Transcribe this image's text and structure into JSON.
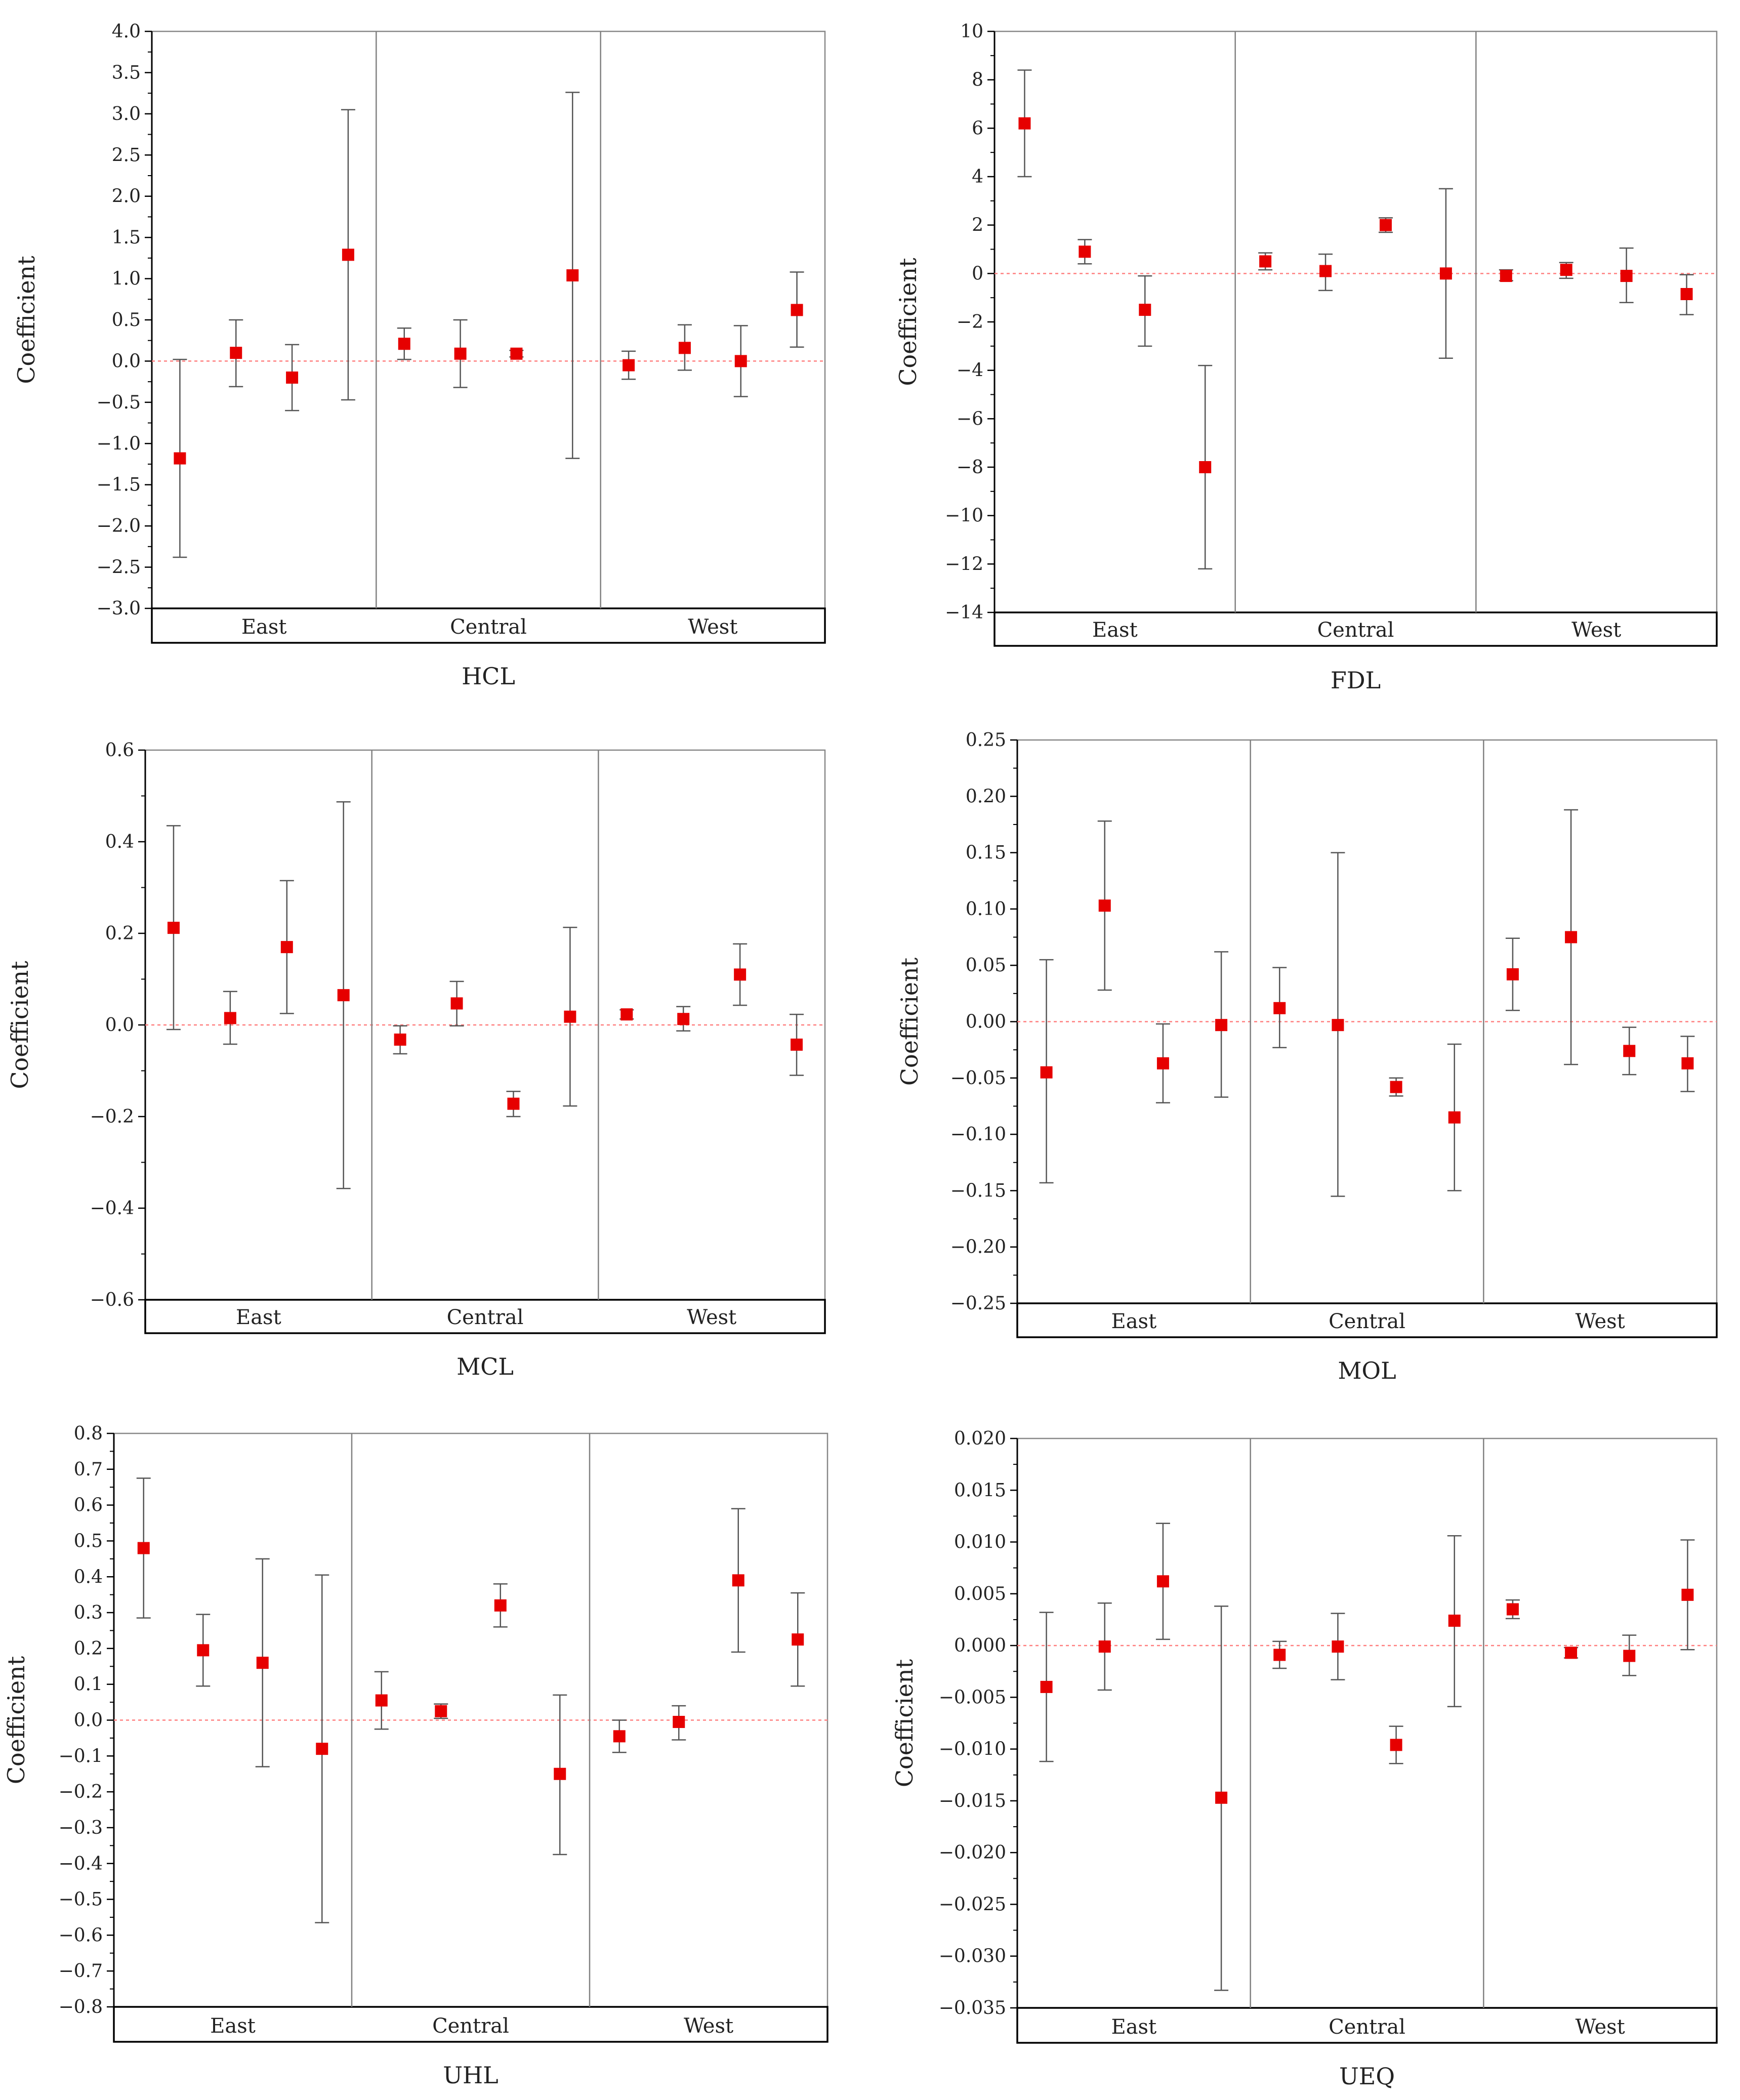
{
  "figure": {
    "colors": {
      "marker": "#e60000",
      "axis": "#000000",
      "divider": "#808080",
      "errorbar": "#555555",
      "zero_line": "#ff8080"
    },
    "y_axis_label": "Coefficient",
    "region_labels": [
      "East",
      "Central",
      "West"
    ]
  },
  "chart_data": [
    {
      "type": "scatter",
      "title": "HCL",
      "ylabel": "Coefficient",
      "ylim": [
        -3.0,
        4.0
      ],
      "yticks": [
        4.0,
        3.5,
        3.0,
        2.5,
        2.0,
        1.5,
        1.0,
        0.5,
        0.0,
        -0.5,
        -1.0,
        -1.5,
        -2.0,
        -2.5,
        -3.0
      ],
      "tick_labels": [
        "4.0",
        "3.5",
        "3.0",
        "2.5",
        "2.0",
        "1.5",
        "1.0",
        "0.5",
        "0.0",
        "-0.5",
        "-1.0",
        "-1.5",
        "-2.0",
        "-2.5",
        "-3.0"
      ],
      "groups": [
        "East",
        "Central",
        "West"
      ],
      "group_sizes": [
        4,
        4,
        4
      ],
      "values": [
        -1.18,
        0.1,
        -0.2,
        1.29,
        0.21,
        0.09,
        0.09,
        1.04,
        -0.05,
        0.16,
        0.0,
        0.62
      ],
      "lower": [
        -2.38,
        -0.31,
        -0.6,
        -0.47,
        0.02,
        -0.32,
        0.05,
        -1.18,
        -0.22,
        -0.11,
        -0.43,
        0.17
      ],
      "upper": [
        0.02,
        0.5,
        0.2,
        3.05,
        0.4,
        0.5,
        0.13,
        3.26,
        0.12,
        0.44,
        0.43,
        1.08
      ]
    },
    {
      "type": "scatter",
      "title": "FDL",
      "ylabel": "Coefficient",
      "ylim": [
        -14,
        10
      ],
      "yticks": [
        10,
        8,
        6,
        4,
        2,
        0,
        -2,
        -4,
        -6,
        -8,
        -10,
        -12,
        -14
      ],
      "tick_labels": [
        "10",
        "8",
        "6",
        "4",
        "2",
        "0",
        "-2",
        "-4",
        "-6",
        "-8",
        "-10",
        "-12",
        "-14"
      ],
      "groups": [
        "East",
        "Central",
        "West"
      ],
      "group_sizes": [
        4,
        4,
        4
      ],
      "values": [
        6.2,
        0.9,
        -1.5,
        -8.0,
        0.5,
        0.1,
        2.0,
        0.0,
        -0.1,
        0.15,
        -0.1,
        -0.85
      ],
      "lower": [
        4.0,
        0.4,
        -3.0,
        -12.2,
        0.15,
        -0.7,
        1.7,
        -3.5,
        -0.3,
        -0.2,
        -1.2,
        -1.7
      ],
      "upper": [
        8.4,
        1.4,
        -0.1,
        -3.8,
        0.85,
        0.8,
        2.3,
        3.5,
        0.15,
        0.45,
        1.05,
        -0.05
      ]
    },
    {
      "type": "scatter",
      "title": "MCL",
      "ylabel": "Coefficient",
      "ylim": [
        -0.6,
        0.6
      ],
      "yticks": [
        0.6,
        0.4,
        0.2,
        0.0,
        -0.2,
        -0.4,
        -0.6
      ],
      "tick_labels": [
        "0.6",
        "0.4",
        "0.2",
        "0.0",
        "-0.2",
        "-0.4",
        "-0.6"
      ],
      "groups": [
        "East",
        "Central",
        "West"
      ],
      "group_sizes": [
        4,
        4,
        4
      ],
      "values": [
        0.212,
        0.015,
        0.17,
        0.065,
        -0.032,
        0.047,
        -0.172,
        0.018,
        0.023,
        0.013,
        0.11,
        -0.043
      ],
      "lower": [
        -0.01,
        -0.042,
        0.025,
        -0.357,
        -0.063,
        -0.002,
        -0.2,
        -0.177,
        0.013,
        -0.013,
        0.043,
        -0.11
      ],
      "upper": [
        0.435,
        0.073,
        0.315,
        0.487,
        -0.002,
        0.095,
        -0.145,
        0.213,
        0.033,
        0.04,
        0.177,
        0.023
      ]
    },
    {
      "type": "scatter",
      "title": "MOL",
      "ylabel": "Coefficient",
      "ylim": [
        -0.25,
        0.25
      ],
      "yticks": [
        0.25,
        0.2,
        0.15,
        0.1,
        0.05,
        0.0,
        -0.05,
        -0.1,
        -0.15,
        -0.2,
        -0.25
      ],
      "tick_labels": [
        "0.25",
        "0.20",
        "0.15",
        "0.10",
        "0.05",
        "0.00",
        "-0.05",
        "-0.10",
        "-0.15",
        "-0.20",
        "-0.25"
      ],
      "groups": [
        "East",
        "Central",
        "West"
      ],
      "group_sizes": [
        4,
        4,
        4
      ],
      "values": [
        -0.045,
        0.103,
        -0.037,
        -0.003,
        0.012,
        -0.003,
        -0.058,
        -0.085,
        0.042,
        0.075,
        -0.026,
        -0.037
      ],
      "lower": [
        -0.143,
        0.028,
        -0.072,
        -0.067,
        -0.023,
        -0.155,
        -0.066,
        -0.15,
        0.01,
        -0.038,
        -0.047,
        -0.062
      ],
      "upper": [
        0.055,
        0.178,
        -0.002,
        0.062,
        0.048,
        0.15,
        -0.05,
        -0.02,
        0.074,
        0.188,
        -0.005,
        -0.013
      ]
    },
    {
      "type": "scatter",
      "title": "UHL",
      "ylabel": "Coefficient",
      "ylim": [
        -0.8,
        0.8
      ],
      "yticks": [
        0.8,
        0.7,
        0.6,
        0.5,
        0.4,
        0.3,
        0.2,
        0.1,
        0.0,
        -0.1,
        -0.2,
        -0.3,
        -0.4,
        -0.5,
        -0.6,
        -0.7,
        -0.8
      ],
      "tick_labels": [
        "0.8",
        "0.7",
        "0.6",
        "0.5",
        "0.4",
        "0.3",
        "0.2",
        "0.1",
        "0.0",
        "-0.1",
        "-0.2",
        "-0.3",
        "-0.4",
        "-0.5",
        "-0.6",
        "-0.7",
        "-0.8"
      ],
      "groups": [
        "East",
        "Central",
        "West"
      ],
      "group_sizes": [
        4,
        4,
        4
      ],
      "values": [
        0.48,
        0.195,
        0.16,
        -0.08,
        0.055,
        0.025,
        0.32,
        -0.15,
        -0.045,
        -0.005,
        0.39,
        0.225
      ],
      "lower": [
        0.285,
        0.095,
        -0.13,
        -0.565,
        -0.025,
        0.005,
        0.26,
        -0.375,
        -0.09,
        -0.055,
        0.19,
        0.095
      ],
      "upper": [
        0.675,
        0.295,
        0.45,
        0.405,
        0.135,
        0.045,
        0.38,
        0.07,
        0.0,
        0.04,
        0.59,
        0.355
      ]
    },
    {
      "type": "scatter",
      "title": "UEQ",
      "ylabel": "Coefficient",
      "ylim": [
        -0.035,
        0.02
      ],
      "yticks": [
        0.02,
        0.015,
        0.01,
        0.005,
        0.0,
        -0.005,
        -0.01,
        -0.015,
        -0.02,
        -0.025,
        -0.03,
        -0.035
      ],
      "tick_labels": [
        "0.020",
        "0.015",
        "0.010",
        "0.005",
        "0.000",
        "-0.005",
        "-0.010",
        "-0.015",
        "-0.020",
        "-0.025",
        "-0.030",
        "-0.035"
      ],
      "groups": [
        "East",
        "Central",
        "West"
      ],
      "group_sizes": [
        4,
        4,
        4
      ],
      "values": [
        -0.004,
        -0.0001,
        0.0062,
        -0.0147,
        -0.0009,
        -0.0001,
        -0.0096,
        0.0024,
        0.0035,
        -0.0007,
        -0.001,
        0.0049
      ],
      "lower": [
        -0.0112,
        -0.0043,
        0.0006,
        -0.0333,
        -0.0022,
        -0.0033,
        -0.0114,
        -0.0059,
        0.0026,
        -0.0012,
        -0.0029,
        -0.0004
      ],
      "upper": [
        0.0032,
        0.0041,
        0.0118,
        0.0038,
        0.0004,
        0.0031,
        -0.0078,
        0.0106,
        0.0044,
        -0.0002,
        0.001,
        0.0102
      ]
    }
  ]
}
